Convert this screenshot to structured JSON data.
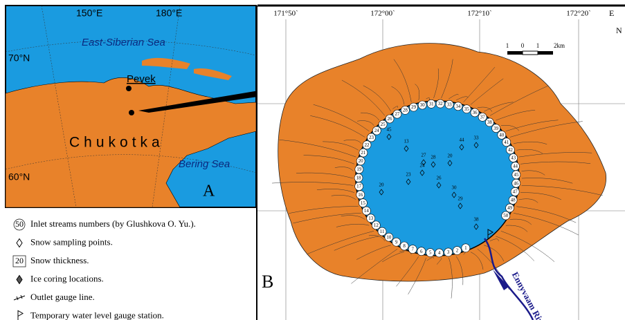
{
  "inset": {
    "lon_labels": [
      "150°E",
      "180°E"
    ],
    "lat_labels": [
      "70°N",
      "60°N"
    ],
    "sea_labels": [
      "East-Siberian Sea",
      "Bering Sea"
    ],
    "town": "Pevek",
    "region": "Chukotka",
    "panel": "A"
  },
  "legend": [
    {
      "symbol": "50",
      "text": "Inlet streams numbers (by Glushkova O. Yu.)."
    },
    {
      "text": "Snow sampling points."
    },
    {
      "symbol": "20",
      "text": "Snow thickness."
    },
    {
      "text": "Ice coring locations."
    },
    {
      "text": "Outlet gauge line."
    },
    {
      "text": "Temporary water level gauge station."
    }
  ],
  "map": {
    "panel": "B",
    "lon_labels": [
      "171°50`",
      "172°00`",
      "172°10`",
      "172°20`"
    ],
    "east": "E",
    "north": "N",
    "scale_labels": [
      "1",
      "0",
      "1",
      "2km"
    ],
    "river": "Ennyvaam River",
    "inlets": [
      1,
      2,
      3,
      4,
      5,
      6,
      7,
      8,
      9,
      10,
      11,
      12,
      13,
      14,
      15,
      16,
      17,
      18,
      19,
      20,
      21,
      22,
      23,
      24,
      25,
      26,
      27,
      28,
      29,
      30,
      31,
      32,
      33,
      34,
      35,
      36,
      37,
      38,
      39,
      40,
      41,
      42,
      43,
      44,
      45,
      46,
      47,
      48,
      49,
      50
    ],
    "snow_thickness": [
      45,
      13,
      44,
      33,
      27,
      28,
      20,
      24,
      26,
      20,
      23,
      29,
      30,
      38
    ]
  }
}
